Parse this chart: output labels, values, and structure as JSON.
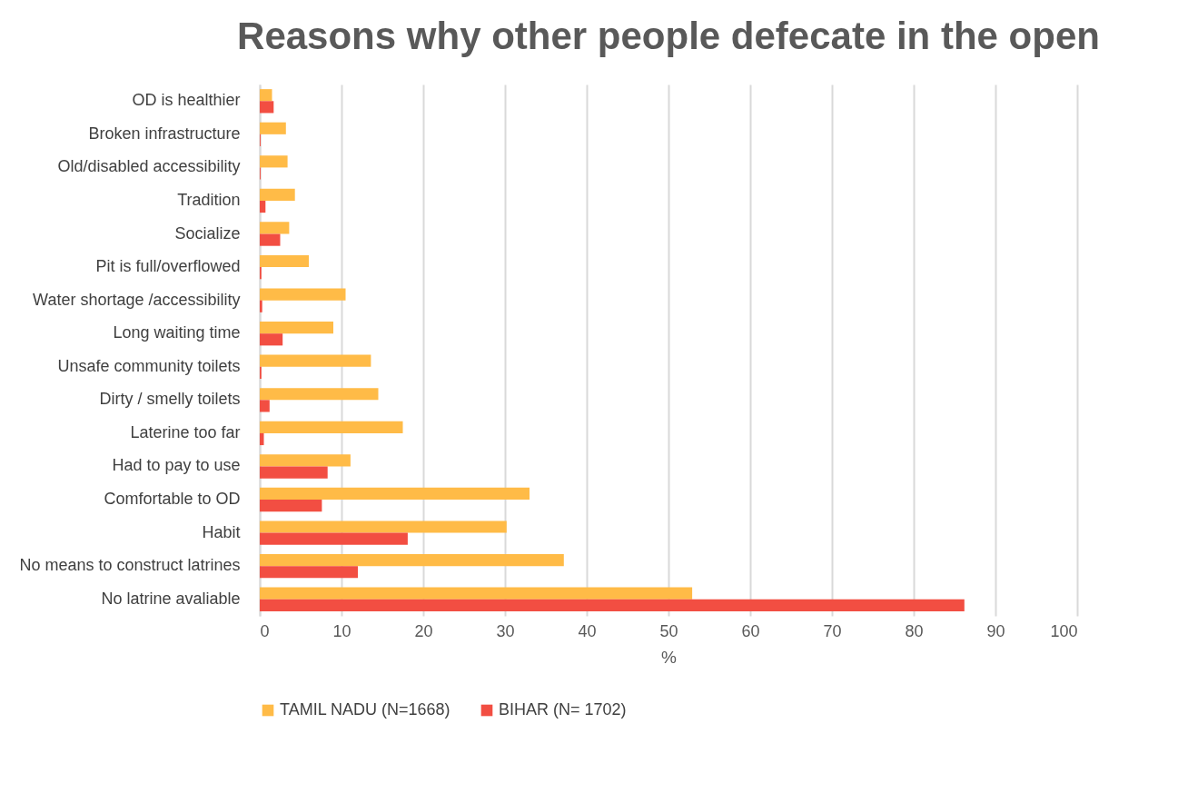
{
  "chart_data": {
    "type": "bar",
    "orientation": "horizontal",
    "title": "Reasons why other people defecate in the open",
    "xlabel": "%",
    "categories": [
      "OD is healthier",
      "Broken infrastructure",
      "Old/disabled accessibility",
      "Tradition",
      "Socialize",
      "Pit is full/overflowed",
      "Water shortage /accessibility",
      "Long waiting time",
      "Unsafe community toilets",
      "Dirty / smelly toilets",
      "Laterine too far",
      "Had to pay to use",
      "Comfortable to OD",
      "Habit",
      "No means to construct latrines",
      "No latrine avaliable"
    ],
    "series": [
      {
        "name": "TAMIL NADU (N=1668)",
        "color": "#ffbb47",
        "values": [
          1.5,
          3.2,
          3.4,
          4.3,
          3.6,
          6.0,
          10.5,
          9.0,
          13.6,
          14.5,
          17.5,
          11.1,
          33.0,
          30.2,
          37.2,
          52.9
        ]
      },
      {
        "name": "BIHAR (N= 1702)",
        "color": "#f24e42",
        "values": [
          1.7,
          0.1,
          0.1,
          0.7,
          2.5,
          0.2,
          0.3,
          2.8,
          0.2,
          1.2,
          0.5,
          8.3,
          7.6,
          18.1,
          12.0,
          86.2
        ]
      }
    ],
    "xlim": [
      0,
      100
    ],
    "xticks": [
      0,
      10,
      20,
      30,
      40,
      50,
      60,
      70,
      80,
      90,
      100
    ],
    "grid": "x",
    "legend": "bottom"
  }
}
